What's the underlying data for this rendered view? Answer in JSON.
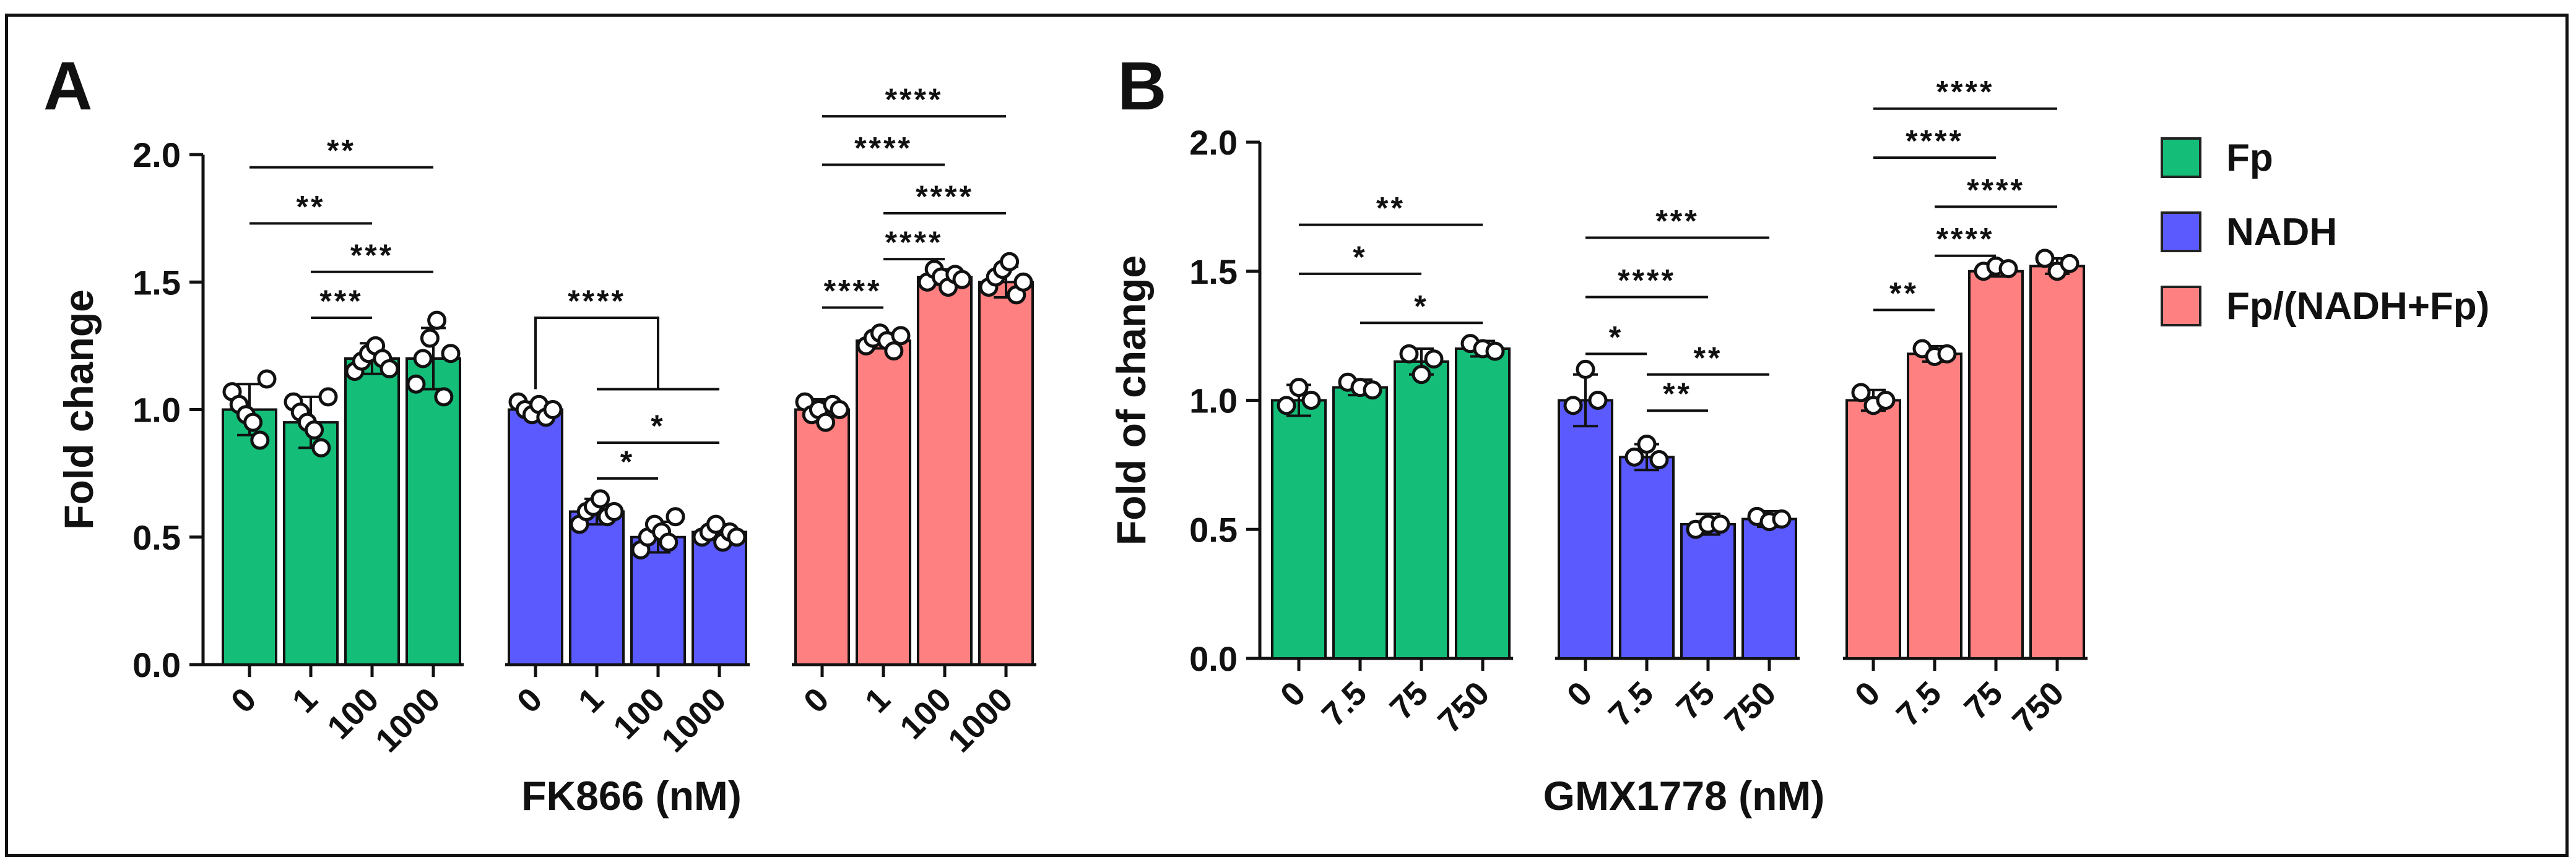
{
  "colors": {
    "Fp": "#14be78",
    "NADH": "#5a5aff",
    "Ratio": "#ff8080"
  },
  "legend": [
    {
      "name": "Fp",
      "color": "#14be78"
    },
    {
      "name": "NADH",
      "color": "#5a5aff"
    },
    {
      "name": "Fp/(NADH+Fp)",
      "color": "#ff8080"
    }
  ],
  "chart_data": [
    {
      "panel_label": "A",
      "type": "bar",
      "ylabel": "Fold change",
      "xlabel": "FK866 (nM)",
      "ylim": [
        0,
        2.0
      ],
      "yticks": [
        "0.0",
        "0.5",
        "1.0",
        "1.5",
        "2.0"
      ],
      "categories": [
        "0",
        "1",
        "100",
        "1000"
      ],
      "series": [
        {
          "name": "Fp",
          "values": [
            1.0,
            0.95,
            1.2,
            1.2
          ],
          "errors": [
            0.1,
            0.1,
            0.06,
            0.12
          ],
          "points": [
            [
              1.07,
              1.02,
              0.98,
              0.95,
              0.88,
              1.12
            ],
            [
              1.03,
              0.99,
              0.95,
              0.92,
              0.85,
              1.05
            ],
            [
              1.15,
              1.19,
              1.22,
              1.25,
              1.2,
              1.16
            ],
            [
              1.1,
              1.2,
              1.28,
              1.35,
              1.05,
              1.22
            ]
          ]
        },
        {
          "name": "NADH",
          "values": [
            1.0,
            0.6,
            0.5,
            0.52
          ],
          "errors": [
            0.03,
            0.05,
            0.06,
            0.03
          ],
          "points": [
            [
              1.03,
              1.0,
              0.98,
              1.02,
              0.97,
              1.0
            ],
            [
              0.55,
              0.6,
              0.62,
              0.65,
              0.58,
              0.6
            ],
            [
              0.45,
              0.5,
              0.55,
              0.52,
              0.48,
              0.58
            ],
            [
              0.5,
              0.52,
              0.55,
              0.48,
              0.52,
              0.5
            ]
          ]
        },
        {
          "name": "Fp/(NADH+Fp)",
          "values": [
            1.0,
            1.27,
            1.52,
            1.5
          ],
          "errors": [
            0.04,
            0.03,
            0.03,
            0.06
          ],
          "points": [
            [
              1.03,
              0.98,
              1.0,
              0.95,
              1.02,
              1.0
            ],
            [
              1.25,
              1.28,
              1.3,
              1.27,
              1.23,
              1.29
            ],
            [
              1.5,
              1.55,
              1.52,
              1.48,
              1.53,
              1.51
            ],
            [
              1.48,
              1.52,
              1.55,
              1.58,
              1.45,
              1.5
            ]
          ]
        }
      ],
      "significance": [
        {
          "series": 0,
          "from": 0,
          "to": 3,
          "label": "**",
          "y": 1.95
        },
        {
          "series": 0,
          "from": 0,
          "to": 2,
          "label": "**",
          "y": 1.73
        },
        {
          "series": 0,
          "from": 1,
          "to": 3,
          "label": "***",
          "y": 1.54
        },
        {
          "series": 0,
          "from": 1,
          "to": 2,
          "label": "***",
          "y": 1.36
        },
        {
          "series": 1,
          "from": 0,
          "to": 2,
          "label": "****",
          "y": 1.36,
          "bracket": true
        },
        {
          "series": 1,
          "from": 1,
          "to": 3,
          "label": "",
          "y": 1.08
        },
        {
          "series": 1,
          "from": 1,
          "to": 3,
          "label": "*",
          "y": 0.87
        },
        {
          "series": 1,
          "from": 1,
          "to": 2,
          "label": "*",
          "y": 0.73
        },
        {
          "series": 2,
          "from": 0,
          "to": 3,
          "label": "****",
          "y": 2.15
        },
        {
          "series": 2,
          "from": 0,
          "to": 2,
          "label": "****",
          "y": 1.96
        },
        {
          "series": 2,
          "from": 1,
          "to": 3,
          "label": "****",
          "y": 1.77
        },
        {
          "series": 2,
          "from": 1,
          "to": 2,
          "label": "****",
          "y": 1.59
        },
        {
          "series": 2,
          "from": 0,
          "to": 1,
          "label": "****",
          "y": 1.4
        }
      ]
    },
    {
      "panel_label": "B",
      "type": "bar",
      "ylabel": "Fold of change",
      "xlabel": "GMX1778 (nM)",
      "ylim": [
        0,
        2.0
      ],
      "yticks": [
        "0.0",
        "0.5",
        "1.0",
        "1.5",
        "2.0"
      ],
      "categories": [
        "0",
        "7.5",
        "75",
        "750"
      ],
      "series": [
        {
          "name": "Fp",
          "values": [
            1.0,
            1.05,
            1.15,
            1.2
          ],
          "errors": [
            0.06,
            0.03,
            0.05,
            0.03
          ],
          "points": [
            [
              0.98,
              1.05,
              1.0
            ],
            [
              1.07,
              1.05,
              1.04
            ],
            [
              1.18,
              1.1,
              1.16
            ],
            [
              1.22,
              1.2,
              1.19
            ]
          ]
        },
        {
          "name": "NADH",
          "values": [
            1.0,
            0.78,
            0.52,
            0.54
          ],
          "errors": [
            0.1,
            0.05,
            0.04,
            0.03
          ],
          "points": [
            [
              0.98,
              1.12,
              1.0
            ],
            [
              0.78,
              0.83,
              0.77
            ],
            [
              0.5,
              0.52,
              0.52
            ],
            [
              0.55,
              0.53,
              0.54
            ]
          ]
        },
        {
          "name": "Fp/(NADH+Fp)",
          "values": [
            1.0,
            1.18,
            1.5,
            1.52
          ],
          "errors": [
            0.04,
            0.03,
            0.02,
            0.03
          ],
          "points": [
            [
              1.03,
              0.98,
              1.0
            ],
            [
              1.2,
              1.17,
              1.18
            ],
            [
              1.5,
              1.52,
              1.51
            ],
            [
              1.55,
              1.5,
              1.53
            ]
          ]
        }
      ],
      "significance": [
        {
          "series": 0,
          "from": 0,
          "to": 3,
          "label": "**",
          "y": 1.68
        },
        {
          "series": 0,
          "from": 0,
          "to": 2,
          "label": "*",
          "y": 1.49
        },
        {
          "series": 0,
          "from": 1,
          "to": 3,
          "label": "*",
          "y": 1.3
        },
        {
          "series": 1,
          "from": 0,
          "to": 3,
          "label": "***",
          "y": 1.63
        },
        {
          "series": 1,
          "from": 0,
          "to": 2,
          "label": "****",
          "y": 1.4
        },
        {
          "series": 1,
          "from": 0,
          "to": 1,
          "label": "*",
          "y": 1.18
        },
        {
          "series": 1,
          "from": 1,
          "to": 3,
          "label": "**",
          "y": 1.1
        },
        {
          "series": 1,
          "from": 1,
          "to": 2,
          "label": "**",
          "y": 0.96
        },
        {
          "series": 2,
          "from": 0,
          "to": 3,
          "label": "****",
          "y": 2.13
        },
        {
          "series": 2,
          "from": 0,
          "to": 2,
          "label": "****",
          "y": 1.94
        },
        {
          "series": 2,
          "from": 1,
          "to": 3,
          "label": "****",
          "y": 1.75
        },
        {
          "series": 2,
          "from": 1,
          "to": 2,
          "label": "****",
          "y": 1.56
        },
        {
          "series": 2,
          "from": 0,
          "to": 1,
          "label": "**",
          "y": 1.35
        }
      ]
    }
  ]
}
